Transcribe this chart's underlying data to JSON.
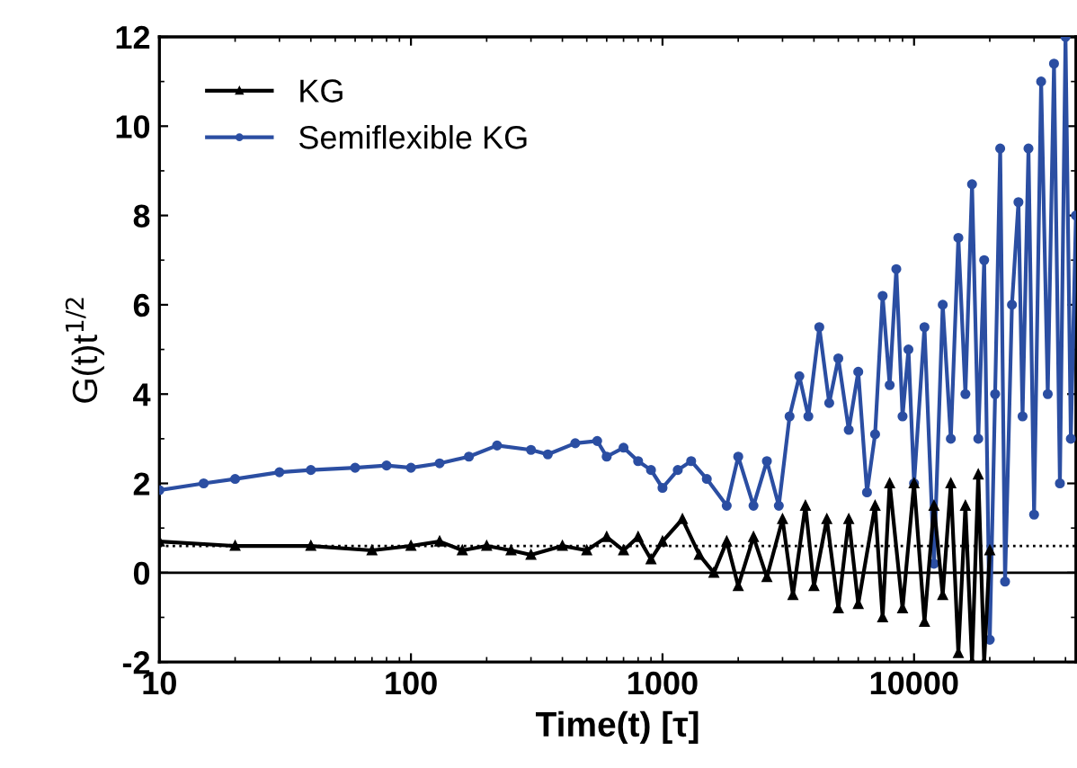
{
  "chart_data": {
    "type": "line",
    "xlabel": "Time(t) [τ]",
    "ylabel": "G(t)t$^{1/2}$",
    "log": "x",
    "xlim": [
      10,
      44000
    ],
    "xticks": [
      10,
      100,
      1000,
      10000
    ],
    "ylim": [
      -2,
      12
    ],
    "yticks": [
      -2,
      0,
      2,
      4,
      6,
      8,
      10,
      12
    ],
    "legend": "top left",
    "grid": false,
    "line_style": "solid",
    "ref_lines": [
      {
        "axis": "y",
        "value": 0,
        "line_style": "solid",
        "color": "#000000"
      },
      {
        "axis": "y",
        "value": 0.6,
        "line_style": "dotted",
        "color": "#000000"
      }
    ],
    "series": [
      {
        "name": "KG",
        "color": "#000000",
        "marker": "triangle",
        "x": [
          10,
          20,
          40,
          70,
          100,
          130,
          160,
          200,
          250,
          300,
          400,
          500,
          600,
          700,
          800,
          900,
          1000,
          1200,
          1400,
          1600,
          1800,
          2000,
          2300,
          2600,
          3000,
          3300,
          3700,
          4000,
          4500,
          5000,
          5500,
          6000,
          7000,
          7500,
          8000,
          9000,
          10000,
          11000,
          12000,
          13000,
          14000,
          15000,
          16000,
          17000,
          18000,
          19000,
          20000
        ],
        "values": [
          0.7,
          0.6,
          0.6,
          0.5,
          0.6,
          0.7,
          0.5,
          0.6,
          0.5,
          0.4,
          0.6,
          0.5,
          0.8,
          0.5,
          0.8,
          0.3,
          0.7,
          1.2,
          0.4,
          0.0,
          0.7,
          -0.3,
          0.8,
          -0.1,
          1.2,
          -0.5,
          1.5,
          -0.3,
          1.2,
          -0.8,
          1.2,
          -0.7,
          1.5,
          -1.0,
          2.0,
          -0.8,
          2.0,
          -1.1,
          1.5,
          -0.5,
          2.0,
          -1.8,
          1.5,
          -2.0,
          2.2,
          -2.0,
          0.5
        ]
      },
      {
        "name": "Semiflexible KG",
        "color": "#2b4ea2",
        "marker": "circle",
        "x": [
          10,
          15,
          20,
          30,
          40,
          60,
          80,
          100,
          130,
          170,
          220,
          300,
          350,
          450,
          550,
          600,
          700,
          800,
          900,
          1000,
          1150,
          1300,
          1500,
          1800,
          2000,
          2300,
          2600,
          2900,
          3200,
          3500,
          3800,
          4200,
          4600,
          5000,
          5500,
          6000,
          6500,
          7000,
          7500,
          8000,
          8500,
          9000,
          9500,
          10000,
          11000,
          12000,
          13000,
          14000,
          15000,
          16000,
          17000,
          18000,
          19000,
          20000,
          21000,
          22000,
          23000,
          24500,
          26000,
          27000,
          28500,
          30000,
          32000,
          34000,
          36000,
          38000,
          40000,
          42000,
          44000
        ],
        "values": [
          1.85,
          2.0,
          2.1,
          2.25,
          2.3,
          2.35,
          2.4,
          2.35,
          2.45,
          2.6,
          2.85,
          2.75,
          2.65,
          2.9,
          2.95,
          2.6,
          2.8,
          2.5,
          2.3,
          1.9,
          2.3,
          2.5,
          2.1,
          1.5,
          2.6,
          1.5,
          2.5,
          1.5,
          3.5,
          4.4,
          3.5,
          5.5,
          3.8,
          4.8,
          3.2,
          4.5,
          1.8,
          3.1,
          6.2,
          4.2,
          6.8,
          3.5,
          5.0,
          2.0,
          5.5,
          0.2,
          6.0,
          3.0,
          7.5,
          4.0,
          8.7,
          3.0,
          7.0,
          -1.5,
          4.0,
          9.5,
          -0.2,
          6.0,
          8.3,
          3.5,
          9.5,
          1.3,
          11.0,
          4.0,
          11.4,
          2.0,
          12,
          3.0,
          8
        ]
      }
    ]
  }
}
